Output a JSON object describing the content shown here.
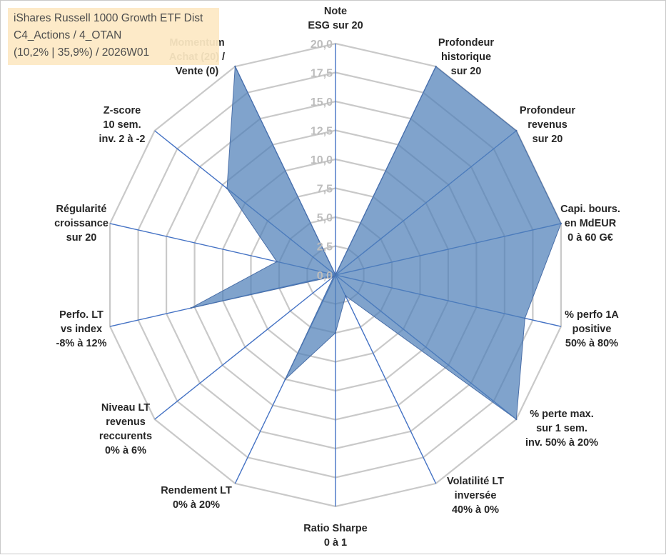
{
  "chart_data": {
    "type": "radar",
    "title": "",
    "r_range": [
      0,
      20
    ],
    "r_ticks": [
      "0,0",
      "2,5",
      "5,0",
      "7,5",
      "10,0",
      "12,5",
      "15,0",
      "17,5",
      "20,0"
    ],
    "axes": [
      {
        "label": [
          "Note",
          "ESG sur 20"
        ],
        "value": 0
      },
      {
        "label": [
          "Profondeur",
          "historique",
          "sur 20"
        ],
        "value": 20
      },
      {
        "label": [
          "Profondeur",
          "revenus",
          "sur 20"
        ],
        "value": 20
      },
      {
        "label": [
          "Capi. bours.",
          "en MdEUR",
          "0 à 60 G€"
        ],
        "value": 20
      },
      {
        "label": [
          "% perfo 1A",
          "positive",
          "50% à 80%"
        ],
        "value": 16.8
      },
      {
        "label": [
          "% perte max.",
          "sur 1 sem.",
          "inv. 50% à 20%"
        ],
        "value": 20
      },
      {
        "label": [
          "Volatilité LT",
          "inversée",
          "40% à 0%"
        ],
        "value": 2.0
      },
      {
        "label": [
          "Ratio Sharpe",
          "0 à 1"
        ],
        "value": 5.0
      },
      {
        "label": [
          "Rendement LT",
          "0% à 20%"
        ],
        "value": 10.0
      },
      {
        "label": [
          "Niveau LT",
          "revenus",
          "reccurents",
          "0% à 6%"
        ],
        "value": 0.2
      },
      {
        "label": [
          "Perfo. LT",
          "vs index",
          "-8% à 12%"
        ],
        "value": 12.8
      },
      {
        "label": [
          "Régularité",
          "croissance",
          "sur 20"
        ],
        "value": 5.2
      },
      {
        "label": [
          "Z-score",
          "10 sem.",
          "inv. 2 à -2"
        ],
        "value": 12.0
      },
      {
        "label": [
          "Momentum",
          "Achat (20) /",
          "Vente (0)"
        ],
        "value": 20
      }
    ],
    "series": [
      {
        "name": "iShares Russell 1000 Growth ETF Dist",
        "color": "#4f7fb8"
      }
    ],
    "grid": true
  },
  "info_box": {
    "line1": "iShares Russell 1000 Growth ETF Dist",
    "line2": "C4_Actions / 4_OTAN",
    "line3": "(10,2% | 35,9%) / 2026W01"
  }
}
